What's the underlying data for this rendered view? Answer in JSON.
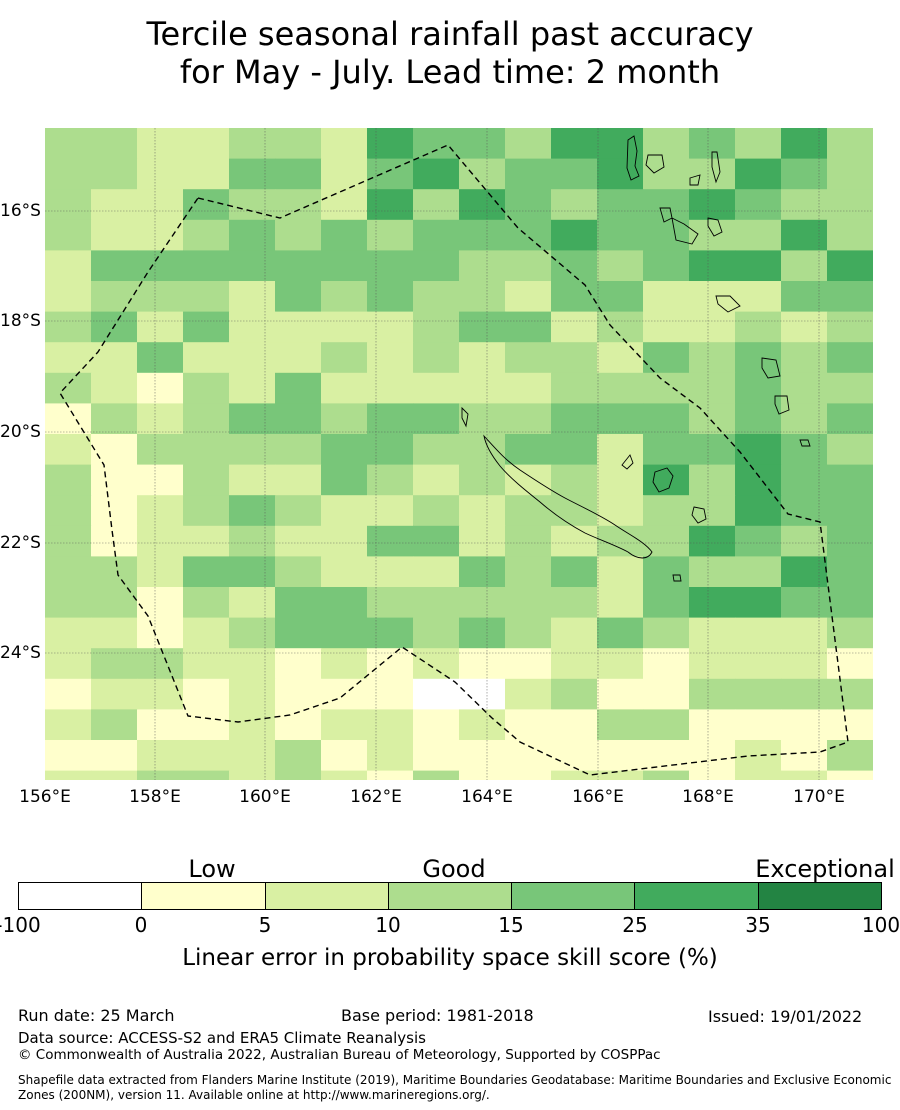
{
  "title": {
    "line1": "Tercile seasonal rainfall past accuracy",
    "line2": "for May - July. Lead time: 2 month"
  },
  "map": {
    "latitude_labels": [
      "16°S",
      "18°S",
      "20°S",
      "22°S",
      "24°S"
    ],
    "longitude_labels": [
      "156°E",
      "158°E",
      "160°E",
      "162°E",
      "164°E",
      "166°E",
      "168°E",
      "170°E"
    ],
    "boundary_style": "dashed black line (EEZ)",
    "gridlines": true
  },
  "legend": {
    "categories": [
      "Low",
      "Good",
      "Exceptional"
    ],
    "ticks": [
      "-100",
      "0",
      "5",
      "10",
      "15",
      "25",
      "35",
      "100"
    ],
    "colors": [
      "#ffffff",
      "#ffffcc",
      "#d9f0a3",
      "#addd8e",
      "#78c679",
      "#41ab5d",
      "#238443"
    ],
    "label": "Linear error in probability space skill score (%)"
  },
  "footer": {
    "run_date": "Run date: 25 March",
    "base_period": "Base period: 1981-2018",
    "issued": "Issued: 19/01/2022",
    "data_source": "Data source: ACCESS-S2 and ERA5 Climate Reanalysis",
    "copyright": "© Commonwealth of Australia 2022, Australian Bureau of Meteorology, Supported by COSPPac",
    "shapefile_line1": "Shapefile data extracted from Flanders Marine Institute (2019), Maritime Boundaries Geodatabase: Maritime Boundaries and Exclusive Economic",
    "shapefile_line2": "Zones (200NM), version 11. Available online at http://www.marineregions.org/."
  }
}
